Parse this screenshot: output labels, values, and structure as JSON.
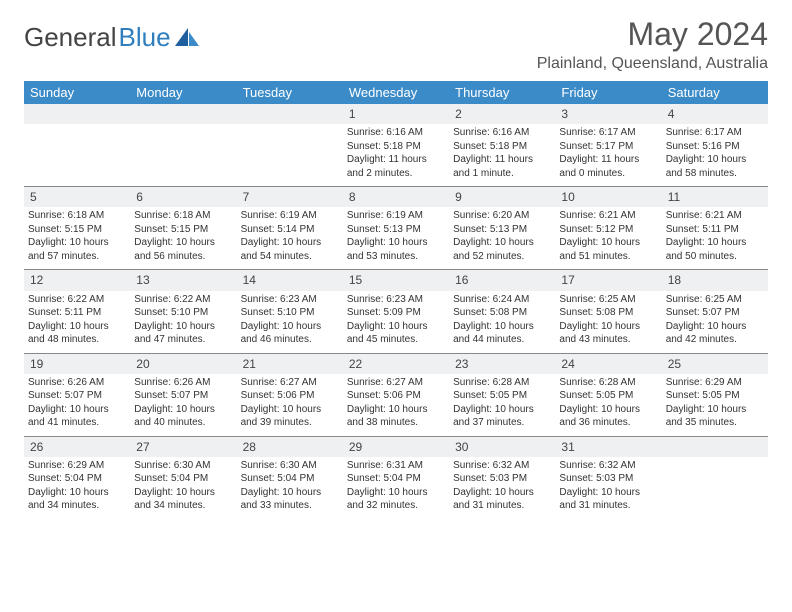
{
  "brand": {
    "part1": "General",
    "part2": "Blue"
  },
  "title": "May 2024",
  "location": "Plainland, Queensland, Australia",
  "colors": {
    "header_bg": "#3b8bc8",
    "header_text": "#ffffff",
    "daynum_bg": "#eef0f2",
    "border": "#888888",
    "text": "#333333",
    "title_text": "#555555",
    "logo_blue": "#2f7fbf"
  },
  "weekdays": [
    "Sunday",
    "Monday",
    "Tuesday",
    "Wednesday",
    "Thursday",
    "Friday",
    "Saturday"
  ],
  "weeks": [
    [
      null,
      null,
      null,
      {
        "d": "1",
        "sr": "6:16 AM",
        "ss": "5:18 PM",
        "dl": "11 hours and 2 minutes."
      },
      {
        "d": "2",
        "sr": "6:16 AM",
        "ss": "5:18 PM",
        "dl": "11 hours and 1 minute."
      },
      {
        "d": "3",
        "sr": "6:17 AM",
        "ss": "5:17 PM",
        "dl": "11 hours and 0 minutes."
      },
      {
        "d": "4",
        "sr": "6:17 AM",
        "ss": "5:16 PM",
        "dl": "10 hours and 58 minutes."
      }
    ],
    [
      {
        "d": "5",
        "sr": "6:18 AM",
        "ss": "5:15 PM",
        "dl": "10 hours and 57 minutes."
      },
      {
        "d": "6",
        "sr": "6:18 AM",
        "ss": "5:15 PM",
        "dl": "10 hours and 56 minutes."
      },
      {
        "d": "7",
        "sr": "6:19 AM",
        "ss": "5:14 PM",
        "dl": "10 hours and 54 minutes."
      },
      {
        "d": "8",
        "sr": "6:19 AM",
        "ss": "5:13 PM",
        "dl": "10 hours and 53 minutes."
      },
      {
        "d": "9",
        "sr": "6:20 AM",
        "ss": "5:13 PM",
        "dl": "10 hours and 52 minutes."
      },
      {
        "d": "10",
        "sr": "6:21 AM",
        "ss": "5:12 PM",
        "dl": "10 hours and 51 minutes."
      },
      {
        "d": "11",
        "sr": "6:21 AM",
        "ss": "5:11 PM",
        "dl": "10 hours and 50 minutes."
      }
    ],
    [
      {
        "d": "12",
        "sr": "6:22 AM",
        "ss": "5:11 PM",
        "dl": "10 hours and 48 minutes."
      },
      {
        "d": "13",
        "sr": "6:22 AM",
        "ss": "5:10 PM",
        "dl": "10 hours and 47 minutes."
      },
      {
        "d": "14",
        "sr": "6:23 AM",
        "ss": "5:10 PM",
        "dl": "10 hours and 46 minutes."
      },
      {
        "d": "15",
        "sr": "6:23 AM",
        "ss": "5:09 PM",
        "dl": "10 hours and 45 minutes."
      },
      {
        "d": "16",
        "sr": "6:24 AM",
        "ss": "5:08 PM",
        "dl": "10 hours and 44 minutes."
      },
      {
        "d": "17",
        "sr": "6:25 AM",
        "ss": "5:08 PM",
        "dl": "10 hours and 43 minutes."
      },
      {
        "d": "18",
        "sr": "6:25 AM",
        "ss": "5:07 PM",
        "dl": "10 hours and 42 minutes."
      }
    ],
    [
      {
        "d": "19",
        "sr": "6:26 AM",
        "ss": "5:07 PM",
        "dl": "10 hours and 41 minutes."
      },
      {
        "d": "20",
        "sr": "6:26 AM",
        "ss": "5:07 PM",
        "dl": "10 hours and 40 minutes."
      },
      {
        "d": "21",
        "sr": "6:27 AM",
        "ss": "5:06 PM",
        "dl": "10 hours and 39 minutes."
      },
      {
        "d": "22",
        "sr": "6:27 AM",
        "ss": "5:06 PM",
        "dl": "10 hours and 38 minutes."
      },
      {
        "d": "23",
        "sr": "6:28 AM",
        "ss": "5:05 PM",
        "dl": "10 hours and 37 minutes."
      },
      {
        "d": "24",
        "sr": "6:28 AM",
        "ss": "5:05 PM",
        "dl": "10 hours and 36 minutes."
      },
      {
        "d": "25",
        "sr": "6:29 AM",
        "ss": "5:05 PM",
        "dl": "10 hours and 35 minutes."
      }
    ],
    [
      {
        "d": "26",
        "sr": "6:29 AM",
        "ss": "5:04 PM",
        "dl": "10 hours and 34 minutes."
      },
      {
        "d": "27",
        "sr": "6:30 AM",
        "ss": "5:04 PM",
        "dl": "10 hours and 34 minutes."
      },
      {
        "d": "28",
        "sr": "6:30 AM",
        "ss": "5:04 PM",
        "dl": "10 hours and 33 minutes."
      },
      {
        "d": "29",
        "sr": "6:31 AM",
        "ss": "5:04 PM",
        "dl": "10 hours and 32 minutes."
      },
      {
        "d": "30",
        "sr": "6:32 AM",
        "ss": "5:03 PM",
        "dl": "10 hours and 31 minutes."
      },
      {
        "d": "31",
        "sr": "6:32 AM",
        "ss": "5:03 PM",
        "dl": "10 hours and 31 minutes."
      },
      null
    ]
  ]
}
